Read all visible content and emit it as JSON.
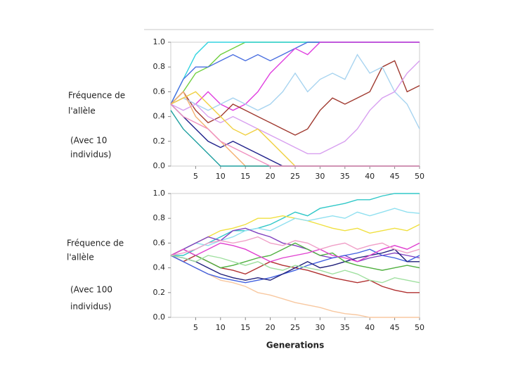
{
  "chart_data": [
    {
      "type": "line",
      "ylabel": [
        "Fréquence de",
        "l'allèle"
      ],
      "annotation": [
        "(Avec 10",
        "individus)"
      ],
      "x": [
        0,
        2.5,
        5,
        7.5,
        10,
        12.5,
        15,
        17.5,
        20,
        22.5,
        25,
        27.5,
        30,
        32.5,
        35,
        37.5,
        40,
        42.5,
        45,
        47.5,
        50
      ],
      "xlim": [
        0,
        50
      ],
      "xticks": [
        5,
        10,
        15,
        20,
        25,
        30,
        35,
        40,
        45,
        50
      ],
      "ylim": [
        0,
        1
      ],
      "yticks": [
        {
          "value": 0,
          "label": "0.0"
        },
        0.2,
        0.4,
        0.6,
        0.8,
        {
          "value": 1,
          "label": "1.0"
        }
      ],
      "series": [
        {
          "color": "#6fcf3f",
          "values": [
            0.5,
            0.6,
            0.75,
            0.8,
            0.9,
            0.95,
            1,
            1,
            1,
            1,
            1,
            1,
            1,
            1,
            1,
            1,
            1,
            1,
            1,
            1,
            1
          ]
        },
        {
          "color": "#33d4e0",
          "values": [
            0.5,
            0.7,
            0.9,
            1,
            1,
            1,
            1,
            1,
            1,
            1,
            1,
            1,
            1,
            1,
            1,
            1,
            1,
            1,
            1,
            1,
            1
          ]
        },
        {
          "color": "#4a6fe0",
          "values": [
            0.5,
            0.7,
            0.8,
            0.8,
            0.85,
            0.9,
            0.85,
            0.9,
            0.85,
            0.9,
            0.95,
            1,
            1,
            1,
            1,
            1,
            1,
            1,
            1,
            1,
            1
          ]
        },
        {
          "color": "#e040e0",
          "values": [
            0.5,
            0.55,
            0.5,
            0.6,
            0.5,
            0.45,
            0.5,
            0.6,
            0.75,
            0.85,
            0.95,
            0.9,
            1,
            1,
            1,
            1,
            1,
            1,
            1,
            1,
            1
          ]
        },
        {
          "color": "#a03a30",
          "values": [
            0.5,
            0.6,
            0.45,
            0.35,
            0.4,
            0.5,
            0.45,
            0.4,
            0.35,
            0.3,
            0.25,
            0.3,
            0.45,
            0.55,
            0.5,
            0.55,
            0.6,
            0.8,
            0.85,
            0.6,
            0.65
          ]
        },
        {
          "color": "#a8d4f0",
          "values": [
            0.5,
            0.55,
            0.5,
            0.45,
            0.5,
            0.55,
            0.5,
            0.45,
            0.5,
            0.6,
            0.75,
            0.6,
            0.7,
            0.75,
            0.7,
            0.9,
            0.75,
            0.8,
            0.6,
            0.5,
            0.3
          ]
        },
        {
          "color": "#d8a0f0",
          "values": [
            0.5,
            0.45,
            0.5,
            0.4,
            0.35,
            0.4,
            0.35,
            0.3,
            0.25,
            0.2,
            0.15,
            0.1,
            0.1,
            0.15,
            0.2,
            0.3,
            0.45,
            0.55,
            0.6,
            0.75,
            0.85
          ]
        },
        {
          "color": "#f0d040",
          "values": [
            0.5,
            0.55,
            0.6,
            0.5,
            0.4,
            0.3,
            0.25,
            0.3,
            0.2,
            0.1,
            0,
            0,
            0,
            0,
            0,
            0,
            0,
            0,
            0,
            0,
            0
          ]
        },
        {
          "color": "#20208a",
          "values": [
            0.5,
            0.4,
            0.3,
            0.2,
            0.15,
            0.2,
            0.15,
            0.1,
            0.05,
            0,
            0,
            0,
            0,
            0,
            0,
            0,
            0,
            0,
            0,
            0,
            0
          ]
        },
        {
          "color": "#f4b070",
          "values": [
            0.5,
            0.6,
            0.4,
            0.3,
            0.2,
            0.1,
            0,
            0,
            0,
            0,
            0,
            0,
            0,
            0,
            0,
            0,
            0,
            0,
            0,
            0,
            0
          ]
        },
        {
          "color": "#20a0a0",
          "values": [
            0.45,
            0.3,
            0.2,
            0.1,
            0,
            0,
            0,
            0,
            0,
            0,
            0,
            0,
            0,
            0,
            0,
            0,
            0,
            0,
            0,
            0,
            0
          ]
        },
        {
          "color": "#f090c0",
          "values": [
            0.5,
            0.4,
            0.35,
            0.3,
            0.2,
            0.15,
            0.1,
            0.05,
            0,
            0,
            0,
            0,
            0,
            0,
            0,
            0,
            0,
            0,
            0,
            0,
            0
          ]
        }
      ]
    },
    {
      "type": "line",
      "ylabel": [
        "Fréquence de",
        "l'allèle"
      ],
      "annotation": [
        "(Avec 100",
        "individus)"
      ],
      "xlabel": "Generations",
      "x": [
        0,
        2.5,
        5,
        7.5,
        10,
        12.5,
        15,
        17.5,
        20,
        22.5,
        25,
        27.5,
        30,
        32.5,
        35,
        37.5,
        40,
        42.5,
        45,
        47.5,
        50
      ],
      "xlim": [
        0,
        50
      ],
      "xticks": [
        5,
        10,
        15,
        20,
        25,
        30,
        35,
        40,
        45,
        50
      ],
      "ylim": [
        0,
        1
      ],
      "yticks": [
        {
          "value": 0,
          "label": "0.0"
        },
        0.2,
        0.4,
        0.6,
        0.8,
        {
          "value": 1,
          "label": "1.0"
        }
      ],
      "series": [
        {
          "color": "#30c8c8",
          "values": [
            0.5,
            0.5,
            0.55,
            0.6,
            0.65,
            0.7,
            0.7,
            0.72,
            0.75,
            0.8,
            0.85,
            0.82,
            0.88,
            0.9,
            0.92,
            0.95,
            0.95,
            0.98,
            1,
            1,
            1
          ]
        },
        {
          "color": "#f0e040",
          "values": [
            0.5,
            0.55,
            0.6,
            0.65,
            0.7,
            0.72,
            0.75,
            0.8,
            0.8,
            0.82,
            0.8,
            0.78,
            0.75,
            0.72,
            0.7,
            0.72,
            0.68,
            0.7,
            0.72,
            0.7,
            0.75
          ]
        },
        {
          "color": "#90e0f0",
          "values": [
            0.5,
            0.55,
            0.6,
            0.58,
            0.62,
            0.65,
            0.7,
            0.72,
            0.7,
            0.75,
            0.8,
            0.78,
            0.8,
            0.82,
            0.8,
            0.85,
            0.82,
            0.85,
            0.88,
            0.85,
            0.84
          ]
        },
        {
          "color": "#8040c0",
          "values": [
            0.5,
            0.55,
            0.6,
            0.65,
            0.62,
            0.7,
            0.72,
            0.68,
            0.65,
            0.6,
            0.58,
            0.55,
            0.5,
            0.48,
            0.5,
            0.45,
            0.48,
            0.5,
            0.52,
            0.5,
            0.48
          ]
        },
        {
          "color": "#b03030",
          "values": [
            0.5,
            0.45,
            0.5,
            0.45,
            0.4,
            0.38,
            0.35,
            0.4,
            0.45,
            0.42,
            0.4,
            0.38,
            0.35,
            0.32,
            0.3,
            0.28,
            0.3,
            0.25,
            0.22,
            0.2,
            0.2
          ]
        },
        {
          "color": "#f8c8a0",
          "values": [
            0.5,
            0.45,
            0.4,
            0.35,
            0.3,
            0.28,
            0.25,
            0.2,
            0.18,
            0.15,
            0.12,
            0.1,
            0.08,
            0.05,
            0.03,
            0.02,
            0,
            0,
            0,
            0,
            0
          ]
        },
        {
          "color": "#4060e0",
          "values": [
            0.5,
            0.45,
            0.4,
            0.35,
            0.32,
            0.3,
            0.28,
            0.3,
            0.32,
            0.35,
            0.38,
            0.42,
            0.45,
            0.48,
            0.5,
            0.52,
            0.55,
            0.5,
            0.48,
            0.45,
            0.5
          ]
        },
        {
          "color": "#20207a",
          "values": [
            0.5,
            0.48,
            0.45,
            0.4,
            0.35,
            0.32,
            0.3,
            0.32,
            0.3,
            0.35,
            0.4,
            0.45,
            0.4,
            0.42,
            0.45,
            0.48,
            0.5,
            0.52,
            0.55,
            0.45,
            0.45
          ]
        },
        {
          "color": "#50b040",
          "values": [
            0.5,
            0.55,
            0.5,
            0.45,
            0.4,
            0.42,
            0.45,
            0.48,
            0.5,
            0.55,
            0.6,
            0.55,
            0.5,
            0.52,
            0.45,
            0.42,
            0.4,
            0.38,
            0.4,
            0.42,
            0.4
          ]
        },
        {
          "color": "#e040d0",
          "values": [
            0.5,
            0.55,
            0.5,
            0.55,
            0.6,
            0.58,
            0.55,
            0.5,
            0.45,
            0.48,
            0.5,
            0.52,
            0.55,
            0.5,
            0.48,
            0.45,
            0.5,
            0.55,
            0.58,
            0.55,
            0.6
          ]
        },
        {
          "color": "#f0a0c8",
          "values": [
            0.5,
            0.52,
            0.55,
            0.6,
            0.62,
            0.6,
            0.62,
            0.65,
            0.6,
            0.58,
            0.62,
            0.6,
            0.55,
            0.58,
            0.6,
            0.55,
            0.58,
            0.6,
            0.55,
            0.52,
            0.55
          ]
        },
        {
          "color": "#a0e0a0",
          "values": [
            0.5,
            0.48,
            0.45,
            0.5,
            0.48,
            0.45,
            0.42,
            0.45,
            0.4,
            0.38,
            0.42,
            0.4,
            0.38,
            0.35,
            0.38,
            0.35,
            0.3,
            0.28,
            0.32,
            0.3,
            0.28
          ]
        }
      ]
    }
  ]
}
